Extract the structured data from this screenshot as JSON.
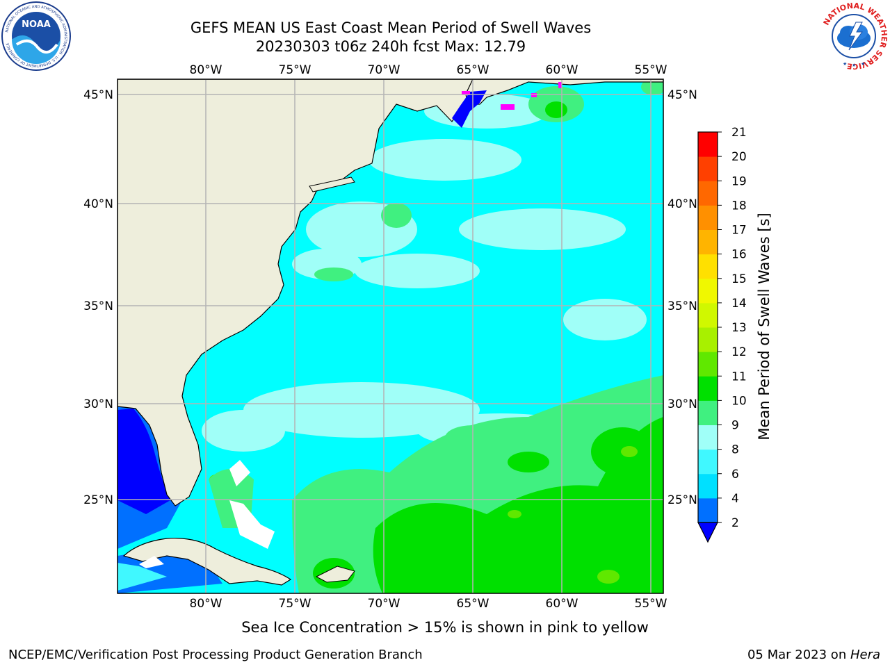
{
  "header": {
    "title_line1": "GEFS MEAN US East Coast Mean Period of Swell Waves",
    "title_line2": "20230303 t06z 240h fcst   Max: 12.79"
  },
  "map": {
    "lon_labels": [
      "80°W",
      "75°W",
      "70°W",
      "65°W",
      "60°W",
      "55°W"
    ],
    "lat_labels": [
      "45°N",
      "40°N",
      "35°N",
      "30°N",
      "25°N"
    ],
    "land_color": "#eeeedc",
    "grid_color": "#b4b4b4"
  },
  "colorbar": {
    "label": "Mean Period of Swell Waves [s]",
    "ticks": [
      "2",
      "4",
      "6",
      "8",
      "9",
      "10",
      "11",
      "12",
      "13",
      "14",
      "15",
      "16",
      "17",
      "18",
      "19",
      "20",
      "21"
    ],
    "colors": [
      "#0070ff",
      "#00e0ff",
      "#40f8ff",
      "#a0fff8",
      "#40f080",
      "#00e000",
      "#60e800",
      "#a8f000",
      "#d0f800",
      "#f0f800",
      "#ffe000",
      "#ffb400",
      "#ff9000",
      "#ff6800",
      "#ff4000",
      "#ff0000"
    ],
    "under_color": "#0000ff"
  },
  "caption": "Sea Ice Concentration > 15% is shown in pink to yellow",
  "footer": {
    "left": "NCEP/EMC/Verification Post Processing Product Generation Branch",
    "right_date": "05 Mar 2023 on ",
    "right_machine": "Hera"
  },
  "logos": {
    "noaa_text": "NOAA",
    "noaa_ring_text": "NATIONAL OCEANIC AND ATMOSPHERIC ADMINISTRATION · U.S. DEPARTMENT OF COMMERCE",
    "nws_ring_text": "NATIONAL WEATHER SERVICE"
  }
}
